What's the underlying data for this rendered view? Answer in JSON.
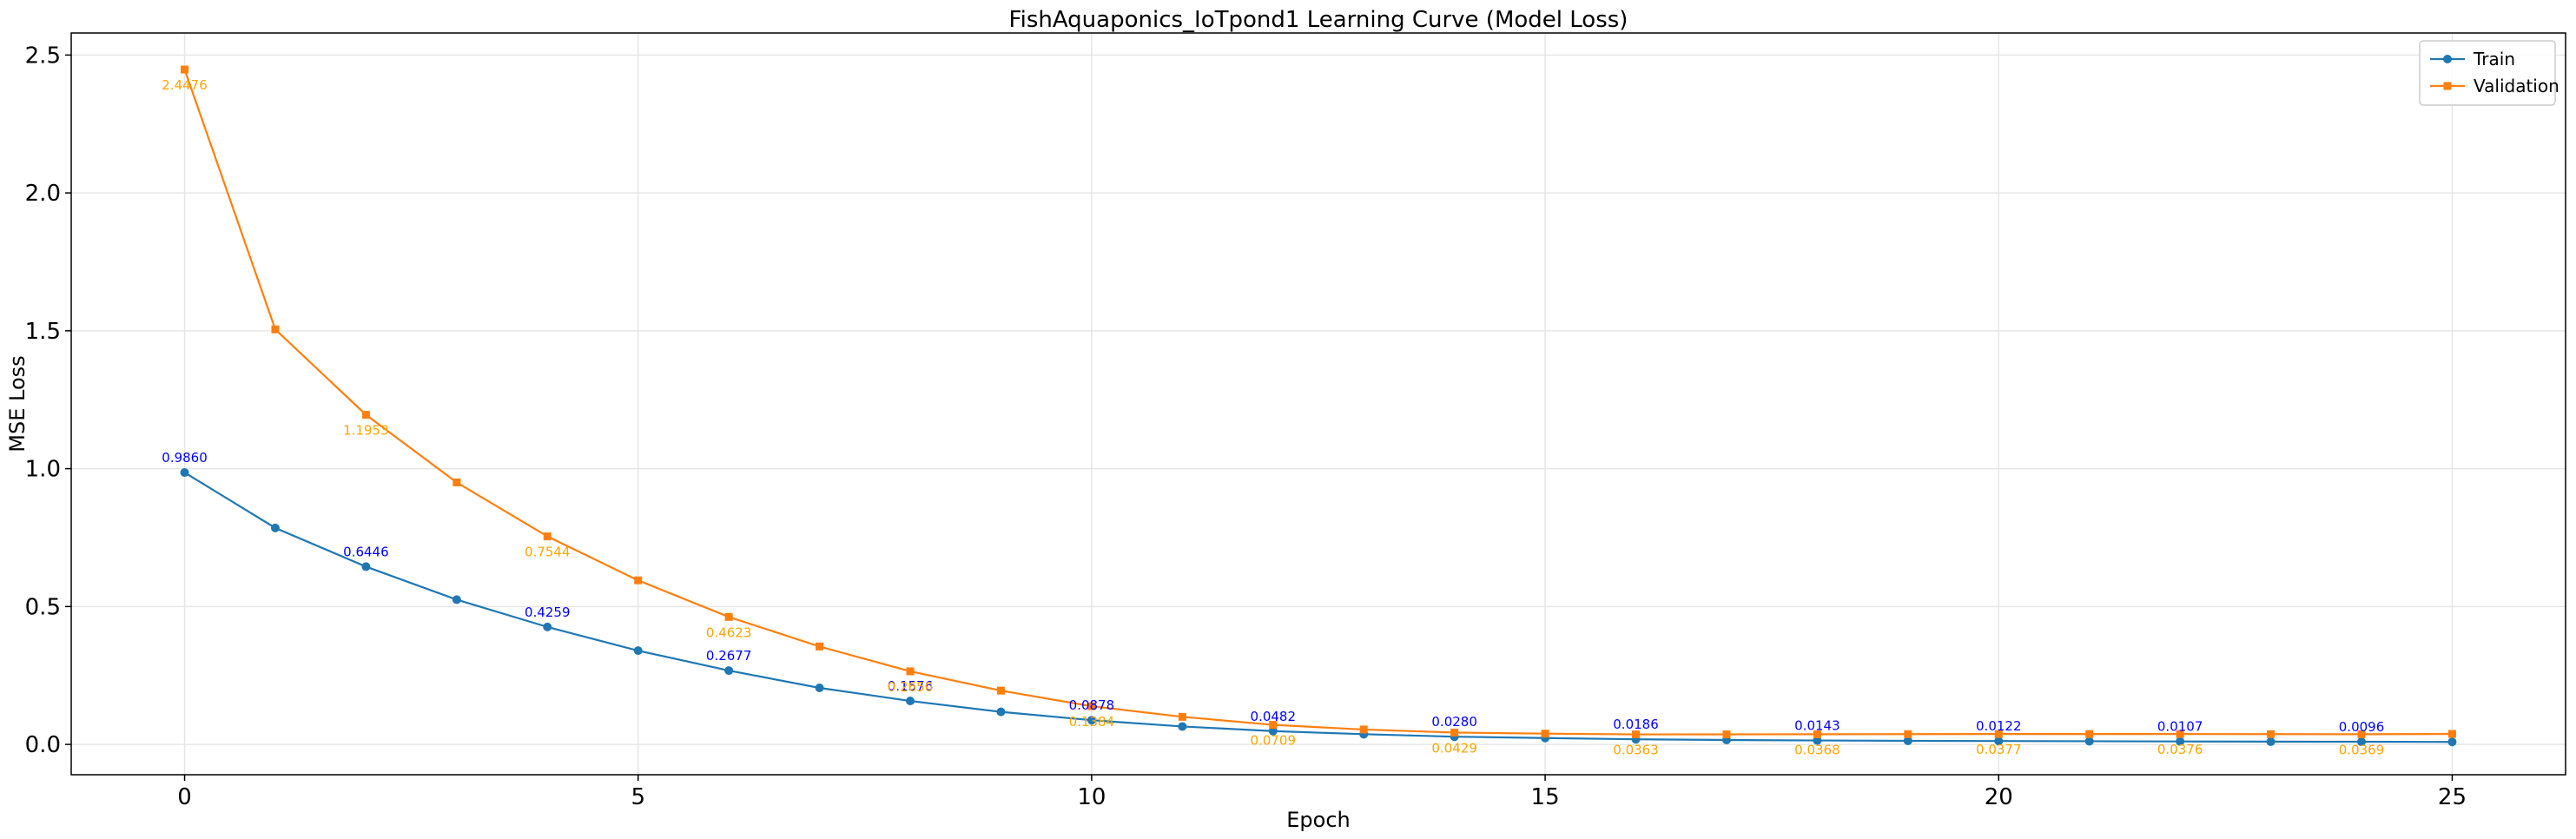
{
  "chart_data": {
    "type": "line",
    "title": "FishAquaponics_IoTpond1 Learning Curve (Model Loss)",
    "xlabel": "Epoch",
    "ylabel": "MSE Loss",
    "xlim": [
      -1.25,
      26.25
    ],
    "ylim": [
      -0.11,
      2.58
    ],
    "xticks": [
      0,
      5,
      10,
      15,
      20,
      25
    ],
    "yticks": [
      0.0,
      0.5,
      1.0,
      1.5,
      2.0,
      2.5
    ],
    "xtick_labels": [
      "0",
      "5",
      "10",
      "15",
      "20",
      "25"
    ],
    "ytick_labels": [
      "0.0",
      "0.5",
      "1.0",
      "1.5",
      "2.0",
      "2.5"
    ],
    "grid": true,
    "legend_position": "top-right",
    "x": [
      0,
      1,
      2,
      3,
      4,
      5,
      6,
      7,
      8,
      9,
      10,
      11,
      12,
      13,
      14,
      15,
      16,
      17,
      18,
      19,
      20,
      21,
      22,
      23,
      24,
      25
    ],
    "series": [
      {
        "name": "Train",
        "color": "#1f77b4",
        "marker": "circle",
        "values": [
          0.986,
          0.785,
          0.6446,
          0.525,
          0.4259,
          0.34,
          0.2677,
          0.205,
          0.1576,
          0.118,
          0.0878,
          0.065,
          0.0482,
          0.037,
          0.028,
          0.023,
          0.0186,
          0.016,
          0.0143,
          0.013,
          0.0122,
          0.0115,
          0.0107,
          0.01,
          0.0096,
          0.009
        ],
        "label_color": "#0000ff",
        "annotations": [
          {
            "x": 0,
            "text": "0.9860"
          },
          {
            "x": 2,
            "text": "0.6446"
          },
          {
            "x": 4,
            "text": "0.4259"
          },
          {
            "x": 6,
            "text": "0.2677"
          },
          {
            "x": 8,
            "text": "0.1576"
          },
          {
            "x": 10,
            "text": "0.0878"
          },
          {
            "x": 12,
            "text": "0.0482"
          },
          {
            "x": 14,
            "text": "0.0280"
          },
          {
            "x": 16,
            "text": "0.0186"
          },
          {
            "x": 18,
            "text": "0.0143"
          },
          {
            "x": 20,
            "text": "0.0122"
          },
          {
            "x": 22,
            "text": "0.0107"
          },
          {
            "x": 24,
            "text": "0.0096"
          }
        ]
      },
      {
        "name": "Validation",
        "color": "#ff7f0e",
        "marker": "square",
        "values": [
          2.4476,
          1.505,
          1.1953,
          0.95,
          0.7544,
          0.595,
          0.4623,
          0.355,
          0.265,
          0.195,
          0.1384,
          0.1,
          0.0709,
          0.054,
          0.0429,
          0.039,
          0.0363,
          0.0365,
          0.0368,
          0.0372,
          0.0377,
          0.0376,
          0.0376,
          0.0372,
          0.0369,
          0.038
        ],
        "label_color": "#ffa500",
        "annotations": [
          {
            "x": 0,
            "text": "2.4476"
          },
          {
            "x": 2,
            "text": "1.1953"
          },
          {
            "x": 4,
            "text": "0.7544"
          },
          {
            "x": 6,
            "text": "0.4623"
          },
          {
            "x": 8,
            "text": "0.2650"
          },
          {
            "x": 10,
            "text": "0.1384"
          },
          {
            "x": 12,
            "text": "0.0709"
          },
          {
            "x": 14,
            "text": "0.0429"
          },
          {
            "x": 16,
            "text": "0.0363"
          },
          {
            "x": 18,
            "text": "0.0368"
          },
          {
            "x": 20,
            "text": "0.0377"
          },
          {
            "x": 22,
            "text": "0.0376"
          },
          {
            "x": 24,
            "text": "0.0369"
          }
        ]
      }
    ]
  }
}
